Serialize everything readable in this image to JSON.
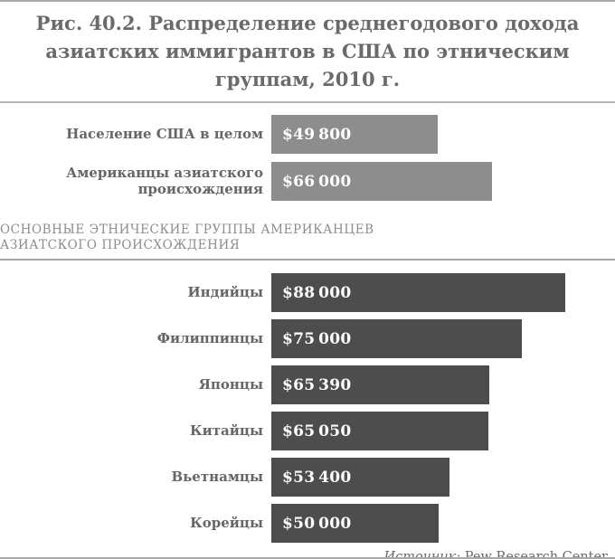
{
  "figure": {
    "title": "Рис. 40.2. Распределение среднегодового дохода азиатских иммигрантов в США по этническим группам, 2010 г.",
    "section_heading": "ОСНОВНЫЕ ЭТНИЧЕСКИЕ ГРУППЫ АМЕРИКАНЦЕВ АЗИАТСКОГО ПРОИСХОЖДЕНИЯ",
    "source_prefix": "Источник:",
    "source_text": "Pew Research Center"
  },
  "colors": {
    "summary_bar": "#8d8d8d",
    "group_bar": "#4d4d4d",
    "title_text": "#6a6a6a",
    "heading_text": "#8c8c8c",
    "value_text": "#ffffff",
    "rule": "#a9a9a9"
  },
  "chart_data": {
    "type": "bar",
    "orientation": "horizontal",
    "title": "Рис. 40.2. Распределение среднегодового дохода азиатских иммигрантов в США по этническим группам, 2010 г.",
    "value_unit": "USD per year",
    "xlim": [
      0,
      88000
    ],
    "grid": false,
    "legend": false,
    "summary_rows": [
      {
        "label": "Население США в целом",
        "value": 49800,
        "value_label": "$49 800"
      },
      {
        "label": "Американцы азиатского происхождения",
        "value": 66000,
        "value_label": "$66 000"
      }
    ],
    "group_rows": [
      {
        "label": "Индийцы",
        "value": 88000,
        "value_label": "$88 000"
      },
      {
        "label": "Филиппинцы",
        "value": 75000,
        "value_label": "$75 000"
      },
      {
        "label": "Японцы",
        "value": 65390,
        "value_label": "$65 390"
      },
      {
        "label": "Китайцы",
        "value": 65050,
        "value_label": "$65 050"
      },
      {
        "label": "Вьетнамцы",
        "value": 53400,
        "value_label": "$53 400"
      },
      {
        "label": "Корейцы",
        "value": 50000,
        "value_label": "$50 000"
      }
    ],
    "source": "Pew Research Center"
  }
}
